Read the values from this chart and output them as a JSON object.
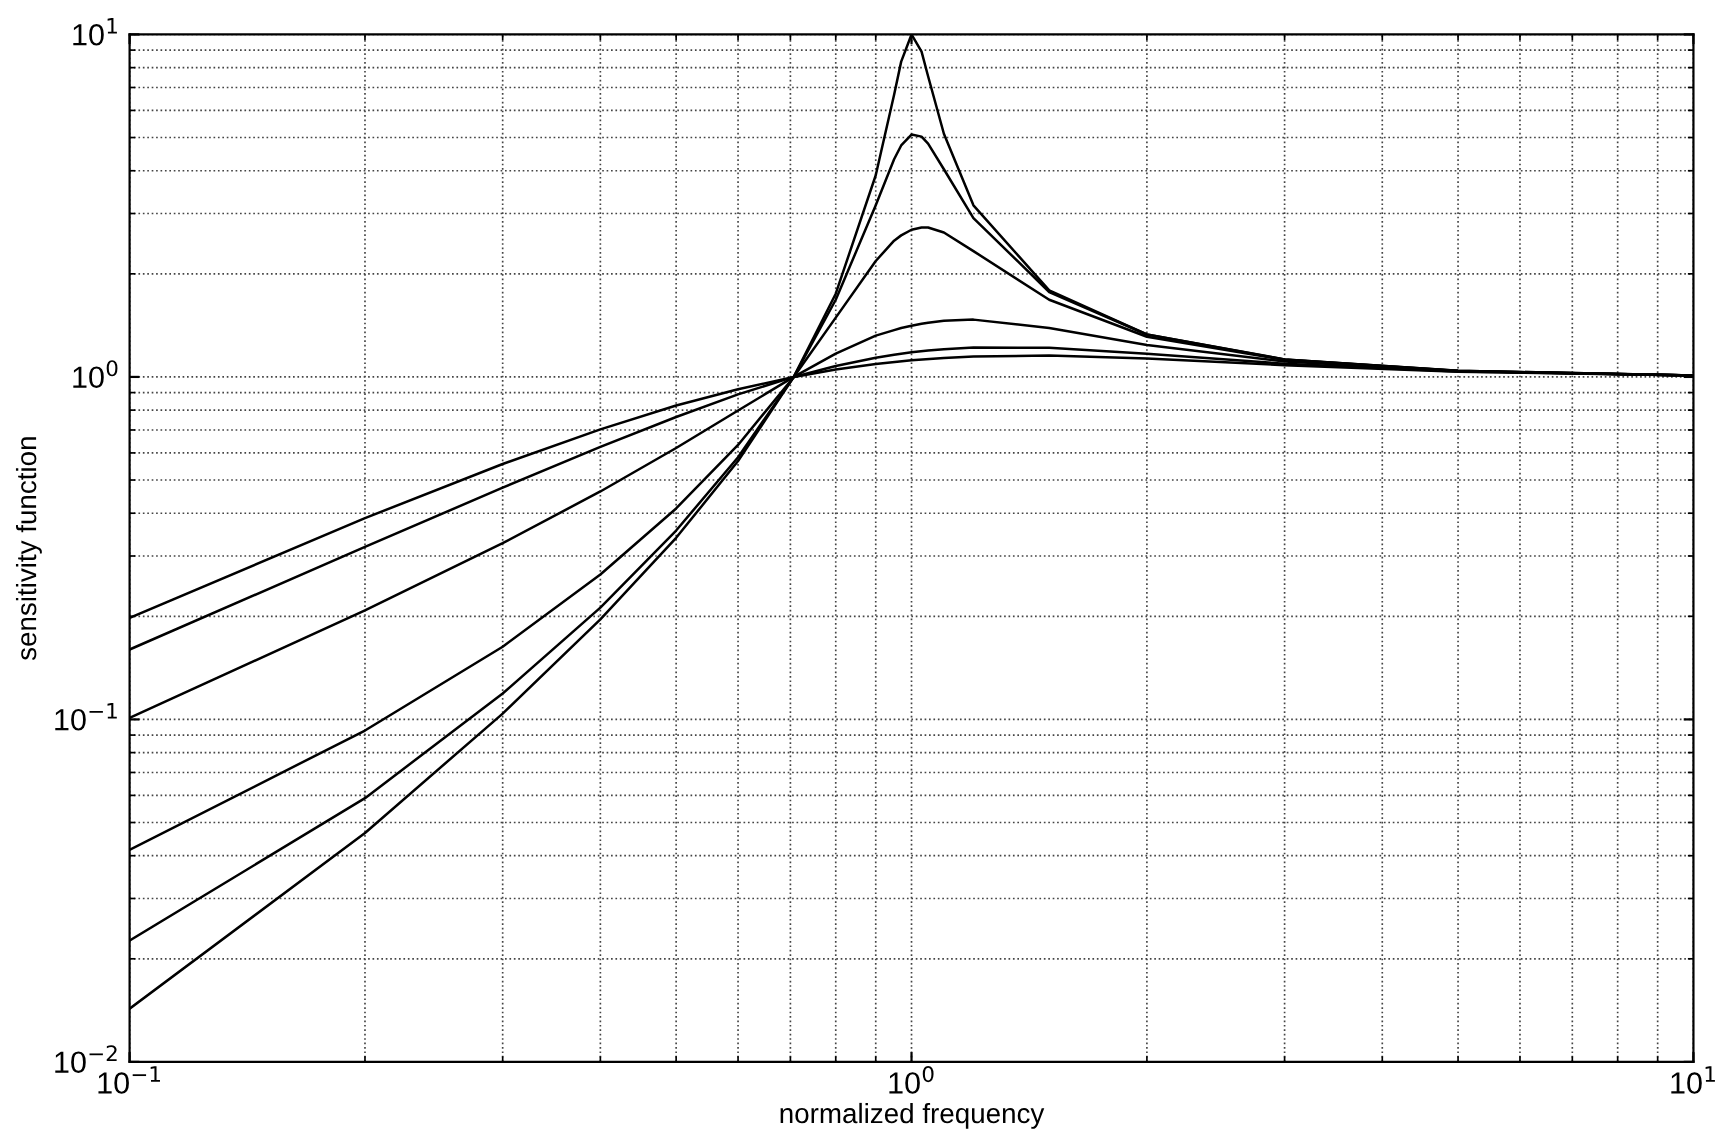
{
  "chart_data": {
    "type": "line",
    "xlabel": "normalized frequency",
    "ylabel": "sensitivity function",
    "log": "xy",
    "grid": true,
    "marker": "none",
    "line_style": "solid",
    "xlim": [
      0.1,
      10
    ],
    "ylim": [
      0.01,
      10
    ],
    "xticks": [
      {
        "value": 0.1,
        "label": "10$^{−1}$"
      },
      {
        "value": 1,
        "label": "10$^{0}$"
      },
      {
        "value": 10,
        "label": "10$^{1}$"
      }
    ],
    "yticks": [
      {
        "value": 0.01,
        "label": "10$^{−2}$"
      },
      {
        "value": 0.1,
        "label": "10$^{−1}$"
      },
      {
        "value": 1,
        "label": "10$^{0}$"
      },
      {
        "value": 10,
        "label": "10$^{1}$"
      }
    ],
    "x": [
      0.1,
      0.2,
      0.3,
      0.4,
      0.5,
      0.6,
      0.707,
      0.8,
      0.9,
      0.95,
      0.97,
      1.0,
      1.03,
      1.05,
      1.1,
      1.2,
      1.5,
      2,
      3,
      5,
      10
    ],
    "series": [
      {
        "color": "#000000",
        "values": [
          0.0143,
          0.0466,
          0.104,
          0.196,
          0.339,
          0.568,
          1.0,
          1.75,
          3.88,
          6.67,
          8.33,
          10.0,
          8.91,
          7.55,
          5.13,
          3.17,
          1.79,
          1.33,
          1.125,
          1.042,
          1.01
        ]
      },
      {
        "color": "#000000",
        "values": [
          0.0226,
          0.0589,
          0.119,
          0.212,
          0.356,
          0.583,
          1.0,
          1.68,
          3.17,
          4.32,
          4.74,
          5.1,
          5.03,
          4.8,
          4.04,
          2.91,
          1.77,
          1.33,
          1.124,
          1.042,
          1.01
        ]
      },
      {
        "color": "#000000",
        "values": [
          0.0416,
          0.0928,
          0.163,
          0.265,
          0.413,
          0.633,
          1.0,
          1.49,
          2.18,
          2.5,
          2.59,
          2.69,
          2.73,
          2.73,
          2.64,
          2.33,
          1.68,
          1.31,
          1.122,
          1.041,
          1.01
        ]
      },
      {
        "color": "#000000",
        "values": [
          0.101,
          0.208,
          0.327,
          0.463,
          0.62,
          0.798,
          1.0,
          1.17,
          1.32,
          1.37,
          1.39,
          1.41,
          1.43,
          1.44,
          1.46,
          1.47,
          1.39,
          1.24,
          1.11,
          1.04,
          1.01
        ]
      },
      {
        "color": "#000000",
        "x": [
          0.1,
          0.2,
          0.3,
          0.4,
          0.5,
          0.6,
          0.707,
          0.8,
          0.9,
          0.95,
          1.0,
          1.05,
          1.1,
          1.2,
          1.5,
          2,
          3,
          5,
          10
        ],
        "values": [
          0.16,
          0.319,
          0.475,
          0.625,
          0.764,
          0.889,
          1.0,
          1.076,
          1.138,
          1.161,
          1.18,
          1.194,
          1.205,
          1.218,
          1.216,
          1.168,
          1.093,
          1.038,
          1.01
        ]
      },
      {
        "color": "#000000",
        "x": [
          0.1,
          0.2,
          0.3,
          0.4,
          0.5,
          0.6,
          0.707,
          0.8,
          0.9,
          1.0,
          1.1,
          1.2,
          1.5,
          2,
          3,
          5,
          10
        ],
        "values": [
          0.198,
          0.387,
          0.557,
          0.703,
          0.825,
          0.921,
          1.0,
          1.051,
          1.091,
          1.118,
          1.136,
          1.147,
          1.154,
          1.131,
          1.082,
          1.036,
          1.01
        ]
      }
    ]
  }
}
